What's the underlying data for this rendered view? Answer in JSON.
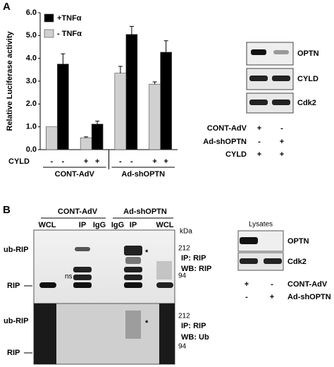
{
  "panel_labels": [
    "A",
    "B"
  ],
  "chart_data": {
    "type": "bar",
    "ylabel": "Relative Luciferase activity",
    "categories": [
      null,
      null,
      null,
      null
    ],
    "series": [
      {
        "name": "+TNFα",
        "color": "#000000",
        "values": [
          3.75,
          1.12,
          5.05,
          4.27
        ],
        "errors": [
          0.45,
          0.13,
          0.35,
          0.5
        ]
      },
      {
        "name": "- TNFα",
        "color": "#d0d0d0",
        "values": [
          1.0,
          0.52,
          3.35,
          2.87
        ],
        "errors": [
          0,
          0.04,
          0.3,
          0.1
        ]
      }
    ],
    "ylim": [
      0,
      6
    ],
    "yticks": [
      {
        "value": 0,
        "label": "0.0"
      },
      {
        "value": 1,
        "label": "1.0"
      },
      {
        "value": 2,
        "label": "2.0"
      },
      {
        "value": 3,
        "label": "3.0"
      },
      {
        "value": 4,
        "label": "4.0"
      },
      {
        "value": 5,
        "label": "5.0"
      },
      {
        "value": 6,
        "label": "6.0"
      }
    ],
    "treatment_row": {
      "label": "CYLD",
      "signs": [
        "-",
        "-",
        "+",
        "+",
        "-",
        "-",
        "+",
        "+"
      ]
    },
    "groups": [
      "CONT-AdV",
      "Ad-shOPTN"
    ],
    "legend": "upper left"
  },
  "blots_a": {
    "rows": [
      "OPTN",
      "CYLD",
      "Cdk2"
    ],
    "conditions": [
      {
        "label": "CONT-AdV",
        "signs": [
          "+",
          "-"
        ]
      },
      {
        "label": "Ad-shOPTN",
        "signs": [
          "-",
          "+"
        ]
      },
      {
        "label": "CYLD",
        "signs": [
          "+",
          "+"
        ]
      }
    ]
  },
  "blots_b": {
    "groups": [
      "CONT-AdV",
      "Ad-shOPTN"
    ],
    "lanes": [
      "WCL",
      "IP",
      "IgG",
      "IgG",
      "IP",
      "WCL"
    ],
    "marker_unit": "kDa",
    "panels": [
      {
        "bands": [
          "ub-RIP",
          "RIP"
        ],
        "markers": [
          "212",
          "94"
        ],
        "ip": "IP: RIP",
        "wb": "WB: RIP"
      },
      {
        "bands": [
          "ub-RIP",
          "RIP"
        ],
        "markers": [
          "212",
          "94"
        ],
        "ip": "IP: RIP",
        "wb": "WB: Ub"
      }
    ],
    "ns": "ns",
    "star": "*"
  },
  "lysates": {
    "title": "Lysates",
    "rows": [
      "OPTN",
      "Cdk2"
    ],
    "conditions": [
      {
        "label": "CONT-AdV",
        "signs": [
          "+",
          "-"
        ]
      },
      {
        "label": "Ad-shOPTN",
        "signs": [
          "-",
          "+"
        ]
      }
    ]
  }
}
